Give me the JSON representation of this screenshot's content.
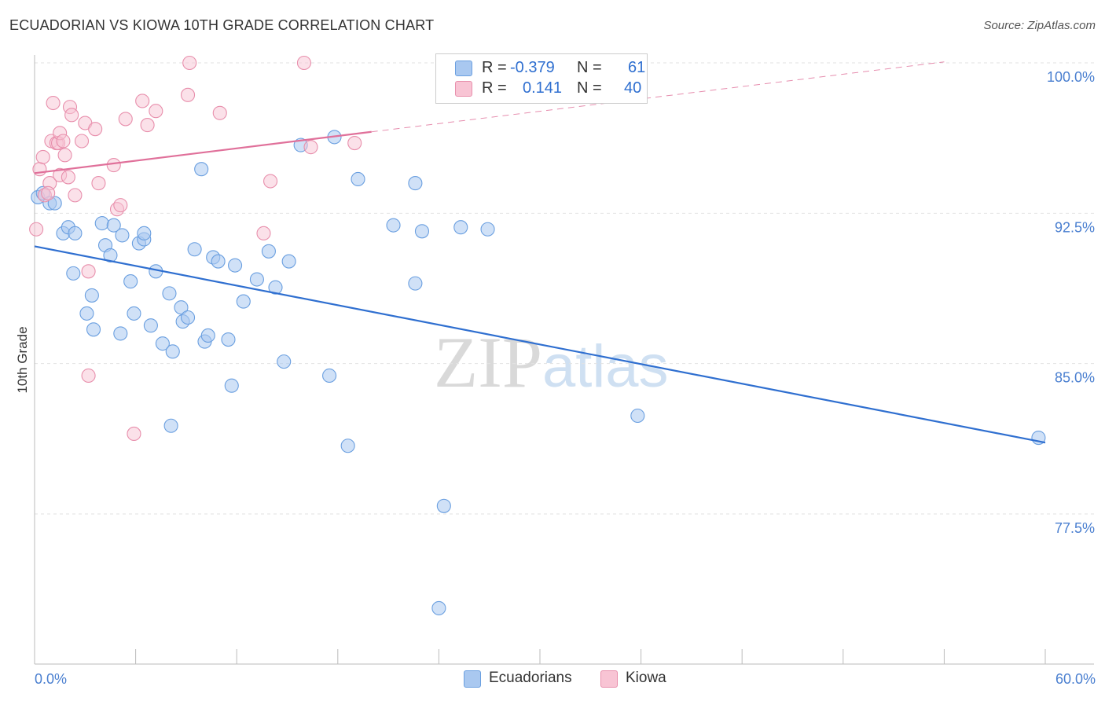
{
  "header": {
    "title": "ECUADORIAN VS KIOWA 10TH GRADE CORRELATION CHART",
    "source": "Source: ZipAtlas.com"
  },
  "legend": {
    "rows": [
      {
        "r_label": "R =",
        "r_value": "-0.379",
        "n_label": "N =",
        "n_value": "61",
        "color": "#a9c8f0",
        "border": "#6a9fe0"
      },
      {
        "r_label": "R =",
        "r_value": "0.141",
        "n_label": "N = ",
        "n_value": "40",
        "color": "#f8c4d4",
        "border": "#e88fac"
      }
    ]
  },
  "bottom_legend": {
    "items": [
      {
        "label": "Ecuadorians",
        "color": "#a9c8f0",
        "border": "#6a9fe0"
      },
      {
        "label": "Kiowa",
        "color": "#f8c4d4",
        "border": "#e88fac"
      }
    ]
  },
  "watermark": {
    "zip": "ZIP",
    "atlas": "atlas"
  },
  "chart_data": {
    "type": "scatter",
    "title": "ECUADORIAN VS KIOWA 10TH GRADE CORRELATION CHART",
    "xlabel": "",
    "ylabel": "10th Grade",
    "xlim": [
      0,
      60
    ],
    "ylim": [
      71.0,
      100.9
    ],
    "x_tick_labels": [
      "0.0%",
      "60.0%"
    ],
    "y_ticks": [
      100.0,
      92.5,
      85.0,
      77.5
    ],
    "y_tick_labels": [
      "100.0%",
      "92.5%",
      "85.0%",
      "77.5%"
    ],
    "grid": "horizontal dashed",
    "colors": {
      "ecuadorians": "#6a9fe0",
      "kiowa": "#e88fac",
      "blue_line": "#2f6fd0",
      "pink_line": "#e0709a"
    },
    "series": [
      {
        "name": "Ecuadorians",
        "trend": {
          "x": [
            0,
            60
          ],
          "y": [
            90.85,
            81.06
          ]
        },
        "points": [
          [
            0.2,
            93.3
          ],
          [
            0.5,
            93.5
          ],
          [
            0.9,
            93.0
          ],
          [
            1.2,
            93.0
          ],
          [
            1.7,
            91.5
          ],
          [
            2.0,
            91.8
          ],
          [
            2.4,
            91.5
          ],
          [
            2.3,
            89.5
          ],
          [
            3.1,
            87.5
          ],
          [
            3.4,
            88.4
          ],
          [
            3.5,
            86.7
          ],
          [
            4.0,
            92.0
          ],
          [
            4.2,
            90.9
          ],
          [
            4.7,
            91.9
          ],
          [
            4.5,
            90.4
          ],
          [
            5.1,
            86.5
          ],
          [
            5.2,
            91.4
          ],
          [
            5.7,
            89.1
          ],
          [
            5.9,
            87.5
          ],
          [
            6.2,
            91.0
          ],
          [
            6.5,
            91.2
          ],
          [
            6.5,
            91.5
          ],
          [
            6.9,
            86.9
          ],
          [
            7.2,
            89.6
          ],
          [
            7.6,
            86.0
          ],
          [
            8.0,
            88.5
          ],
          [
            8.2,
            85.6
          ],
          [
            8.7,
            87.8
          ],
          [
            8.8,
            87.1
          ],
          [
            9.1,
            87.3
          ],
          [
            9.5,
            90.7
          ],
          [
            9.9,
            94.7
          ],
          [
            10.1,
            86.1
          ],
          [
            10.3,
            86.4
          ],
          [
            10.6,
            90.3
          ],
          [
            10.9,
            90.1
          ],
          [
            11.5,
            86.2
          ],
          [
            11.7,
            83.9
          ],
          [
            11.9,
            89.9
          ],
          [
            12.4,
            88.1
          ],
          [
            13.2,
            89.2
          ],
          [
            13.9,
            90.6
          ],
          [
            14.3,
            88.8
          ],
          [
            14.8,
            85.1
          ],
          [
            15.1,
            90.1
          ],
          [
            15.8,
            95.9
          ],
          [
            17.5,
            84.4
          ],
          [
            17.8,
            96.3
          ],
          [
            18.6,
            80.9
          ],
          [
            19.2,
            94.2
          ],
          [
            21.3,
            91.9
          ],
          [
            22.6,
            89.0
          ],
          [
            22.6,
            94.0
          ],
          [
            23.0,
            91.6
          ],
          [
            24.0,
            72.8
          ],
          [
            24.3,
            77.9
          ],
          [
            25.3,
            91.8
          ],
          [
            26.9,
            91.7
          ],
          [
            35.8,
            82.4
          ],
          [
            59.6,
            81.3
          ],
          [
            8.1,
            81.9
          ]
        ]
      },
      {
        "name": "Kiowa",
        "trend": {
          "x": [
            0,
            20
          ],
          "y": [
            94.5,
            96.56
          ]
        },
        "trend_dashed": {
          "x": [
            20,
            54
          ],
          "y": [
            96.56,
            100.05
          ]
        },
        "points": [
          [
            0.1,
            91.7
          ],
          [
            0.3,
            94.7
          ],
          [
            0.5,
            95.3
          ],
          [
            0.6,
            93.4
          ],
          [
            0.9,
            94.0
          ],
          [
            1.0,
            96.1
          ],
          [
            1.1,
            98.0
          ],
          [
            1.3,
            96.0
          ],
          [
            1.4,
            96.0
          ],
          [
            1.5,
            94.4
          ],
          [
            1.5,
            96.5
          ],
          [
            1.7,
            96.1
          ],
          [
            1.8,
            95.4
          ],
          [
            2.0,
            94.3
          ],
          [
            2.1,
            97.8
          ],
          [
            2.2,
            97.4
          ],
          [
            2.4,
            93.4
          ],
          [
            2.8,
            96.1
          ],
          [
            3.0,
            97.0
          ],
          [
            3.2,
            89.6
          ],
          [
            3.2,
            84.4
          ],
          [
            3.6,
            96.7
          ],
          [
            3.8,
            94.0
          ],
          [
            4.7,
            94.9
          ],
          [
            4.9,
            92.7
          ],
          [
            5.1,
            92.9
          ],
          [
            5.4,
            97.2
          ],
          [
            5.9,
            81.5
          ],
          [
            6.4,
            98.1
          ],
          [
            6.7,
            96.9
          ],
          [
            7.2,
            97.6
          ],
          [
            9.2,
            100.0
          ],
          [
            9.1,
            98.4
          ],
          [
            11.0,
            97.5
          ],
          [
            13.6,
            91.5
          ],
          [
            14.0,
            94.1
          ],
          [
            16.0,
            100.0
          ],
          [
            16.4,
            95.8
          ],
          [
            19.0,
            96.0
          ],
          [
            0.8,
            93.5
          ]
        ]
      }
    ]
  }
}
